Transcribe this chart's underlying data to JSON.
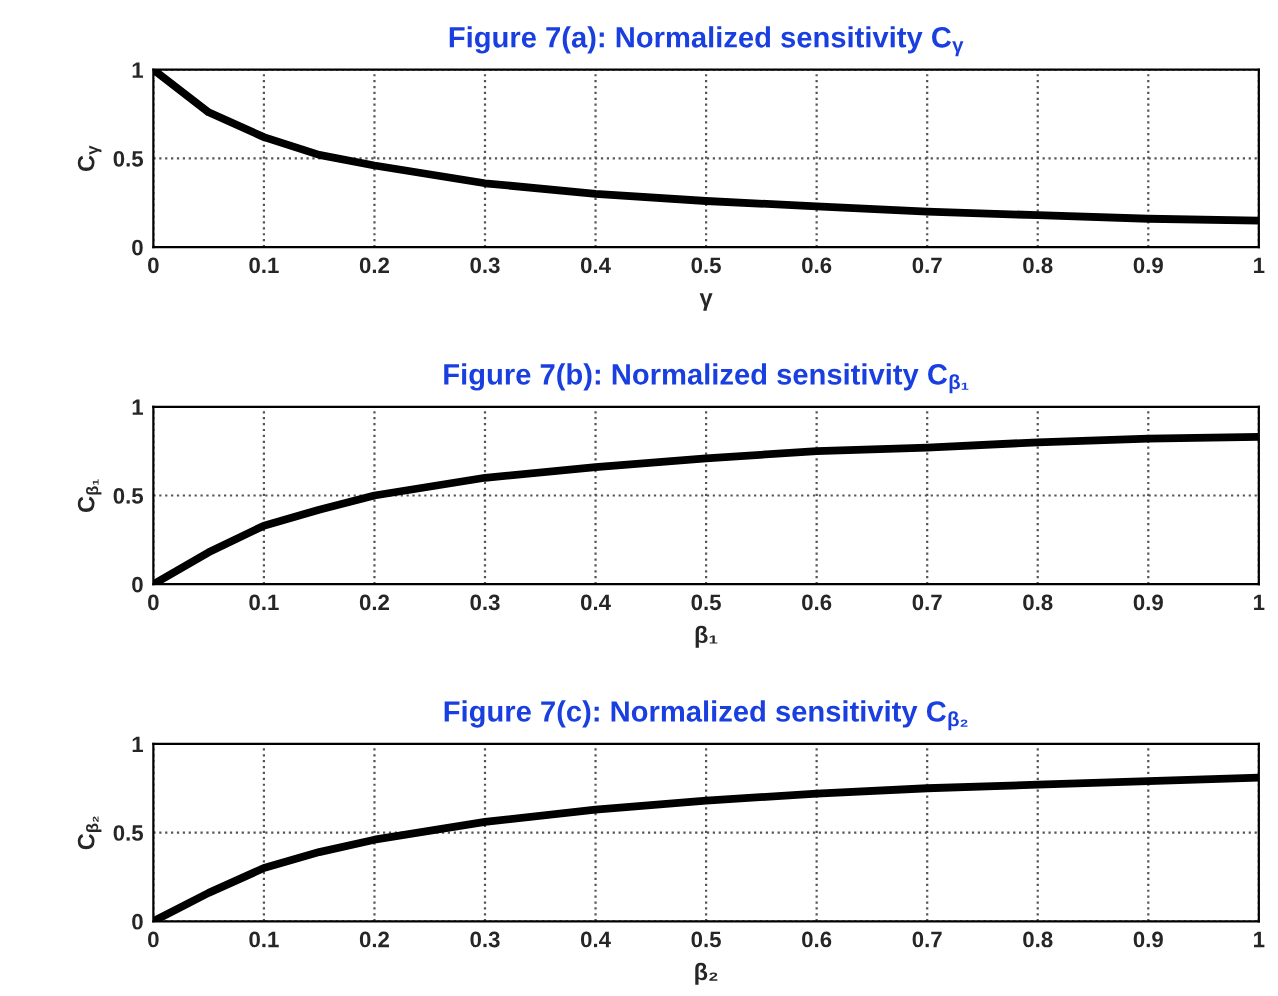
{
  "chart_data": [
    {
      "type": "line",
      "title": "Figure 7(a): Normalized sensitivity C$_{γ}$",
      "xlabel": "γ",
      "ylabel": "C$_{γ}$",
      "x": [
        0,
        0.05,
        0.1,
        0.15,
        0.2,
        0.3,
        0.4,
        0.5,
        0.6,
        0.7,
        0.8,
        0.9,
        1
      ],
      "series": [
        {
          "color": "#000000",
          "values": [
            1,
            0.76,
            0.62,
            0.52,
            0.46,
            0.36,
            0.3,
            0.26,
            0.23,
            0.2,
            0.18,
            0.16,
            0.15
          ]
        }
      ],
      "xlim": [
        0,
        1
      ],
      "ylim": [
        0,
        1
      ],
      "xticks": [
        0,
        0.1,
        0.2,
        0.3,
        0.4,
        0.5,
        0.6,
        0.7,
        0.8,
        0.9,
        1
      ],
      "yticks": [
        0,
        0.5,
        1
      ],
      "grid": true,
      "line_style": "solid",
      "marker": "none"
    },
    {
      "type": "line",
      "title": "Figure 7(b): Normalized sensitivity C$_{β₁}$",
      "xlabel": "β₁",
      "ylabel": "C$_{β₁}$",
      "x": [
        0,
        0.05,
        0.1,
        0.15,
        0.2,
        0.3,
        0.4,
        0.5,
        0.6,
        0.7,
        0.8,
        0.9,
        1
      ],
      "series": [
        {
          "color": "#000000",
          "values": [
            0,
            0.18,
            0.33,
            0.42,
            0.5,
            0.6,
            0.66,
            0.71,
            0.75,
            0.77,
            0.8,
            0.82,
            0.83
          ]
        }
      ],
      "xlim": [
        0,
        1
      ],
      "ylim": [
        0,
        1
      ],
      "xticks": [
        0,
        0.1,
        0.2,
        0.3,
        0.4,
        0.5,
        0.6,
        0.7,
        0.8,
        0.9,
        1
      ],
      "yticks": [
        0,
        0.5,
        1
      ],
      "grid": true,
      "line_style": "solid",
      "marker": "none"
    },
    {
      "type": "line",
      "title": "Figure 7(c): Normalized sensitivity C$_{β₂}$",
      "xlabel": "β₂",
      "ylabel": "C$_{β₂}$",
      "x": [
        0,
        0.05,
        0.1,
        0.15,
        0.2,
        0.3,
        0.4,
        0.5,
        0.6,
        0.7,
        0.8,
        0.9,
        1
      ],
      "series": [
        {
          "color": "#000000",
          "values": [
            0,
            0.16,
            0.3,
            0.39,
            0.46,
            0.56,
            0.63,
            0.68,
            0.72,
            0.75,
            0.77,
            0.79,
            0.81
          ]
        }
      ],
      "xlim": [
        0,
        1
      ],
      "ylim": [
        0,
        1
      ],
      "xticks": [
        0,
        0.1,
        0.2,
        0.3,
        0.4,
        0.5,
        0.6,
        0.7,
        0.8,
        0.9,
        1
      ],
      "yticks": [
        0,
        0.5,
        1
      ],
      "grid": true,
      "line_style": "solid",
      "marker": "none"
    }
  ]
}
